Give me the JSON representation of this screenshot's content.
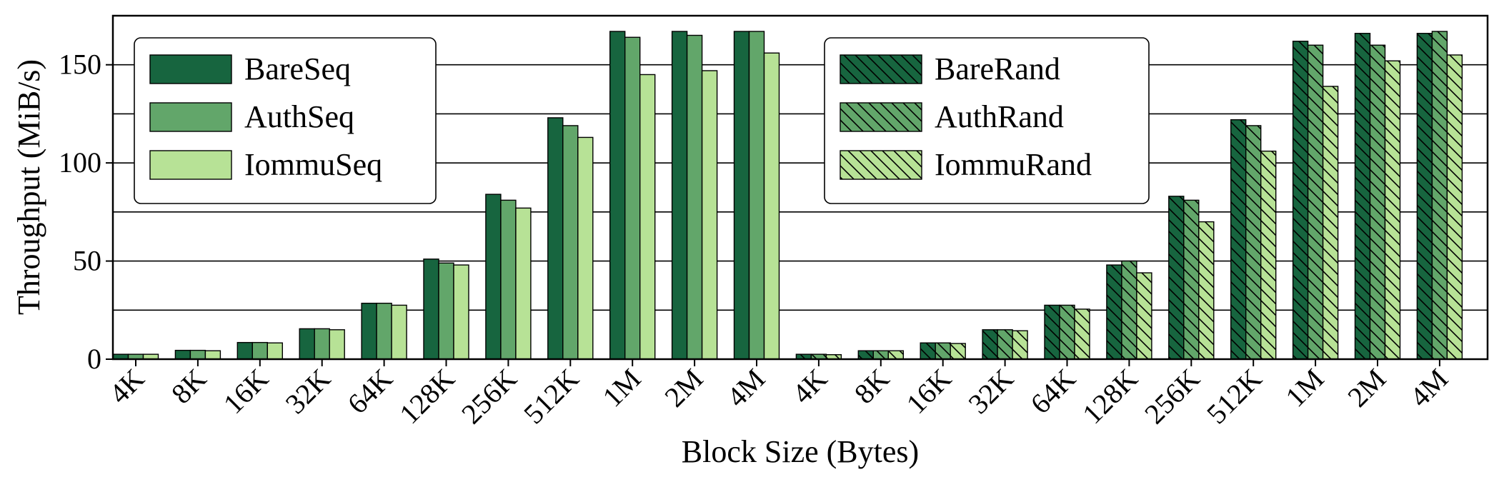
{
  "chart_data": {
    "type": "bar",
    "title": "",
    "xlabel": "Block Size (Bytes)",
    "ylabel": "Throughput (MiB/s)",
    "ylim": [
      0,
      175
    ],
    "yticks": [
      0,
      50,
      100,
      150
    ],
    "grid": "horizontal every 25",
    "categories": [
      "4K",
      "8K",
      "16K",
      "32K",
      "64K",
      "128K",
      "256K",
      "512K",
      "1M",
      "2M",
      "4M"
    ],
    "groups": [
      {
        "pattern": "Seq",
        "legend_position": "top-left",
        "series": [
          {
            "name": "BareSeq",
            "color": "#17653f",
            "hatch": false,
            "values": [
              2.5,
              4.5,
              8.5,
              15.5,
              28.5,
              51,
              84,
              123,
              167,
              167,
              167
            ]
          },
          {
            "name": "AuthSeq",
            "color": "#62a66a",
            "hatch": false,
            "values": [
              2.5,
              4.5,
              8.5,
              15.5,
              28.5,
              49,
              81,
              119,
              164,
              165,
              167
            ]
          },
          {
            "name": "IommuSeq",
            "color": "#b7e296",
            "hatch": false,
            "values": [
              2.5,
              4.3,
              8.3,
              15,
              27.5,
              48,
              77,
              113,
              145,
              147,
              156
            ]
          }
        ]
      },
      {
        "pattern": "Rand",
        "legend_position": "top-center",
        "series": [
          {
            "name": "BareRand",
            "color": "#17653f",
            "hatch": true,
            "values": [
              2.5,
              4.3,
              8.3,
              15,
              27.5,
              48,
              83,
              122,
              162,
              166,
              166
            ]
          },
          {
            "name": "AuthRand",
            "color": "#62a66a",
            "hatch": true,
            "values": [
              2.5,
              4.3,
              8.3,
              15,
              27.5,
              50,
              81,
              119,
              160,
              160,
              167
            ]
          },
          {
            "name": "IommuRand",
            "color": "#b7e296",
            "hatch": true,
            "values": [
              2.3,
              4.3,
              8.0,
              14.5,
              25.5,
              44,
              70,
              106,
              139,
              152,
              155
            ]
          }
        ]
      }
    ]
  }
}
